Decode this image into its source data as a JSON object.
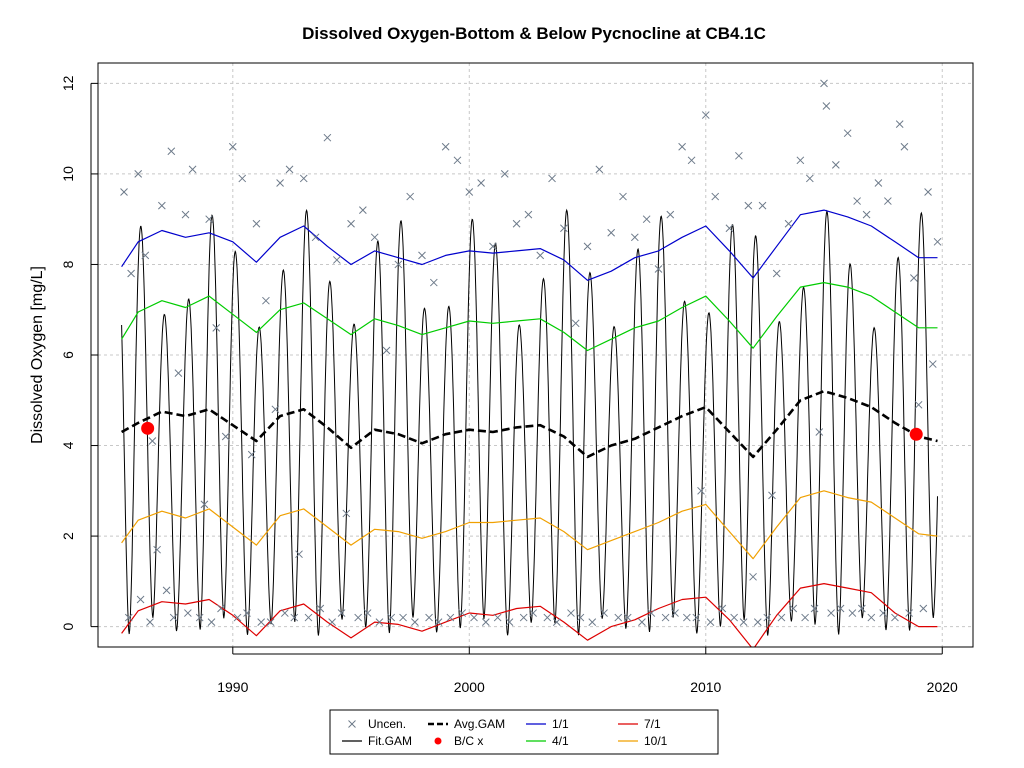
{
  "chart_data": {
    "type": "line",
    "title": "Dissolved Oxygen-Bottom & Below Pycnocline at CB4.1C",
    "xlabel": "",
    "ylabel": "Dissolved Oxygen [mg/L]",
    "xlim": [
      1984.3,
      2021.3
    ],
    "ylim": [
      -0.45,
      12.45
    ],
    "x_ticks": [
      1990,
      2000,
      2010,
      2020
    ],
    "y_ticks": [
      0,
      2,
      4,
      6,
      8,
      10,
      12
    ],
    "grid": true,
    "legend_position": "bottom-center",
    "legend": [
      {
        "label": "Uncen.",
        "kind": "cross",
        "color": "#6d7a8a"
      },
      {
        "label": "Fit.GAM",
        "kind": "line",
        "color": "#000000"
      },
      {
        "label": "Avg.GAM",
        "kind": "dashed",
        "color": "#000000"
      },
      {
        "label": "B/C x",
        "kind": "dot",
        "color": "#ff0000"
      },
      {
        "label": "1/1",
        "kind": "line",
        "color": "#0000cc"
      },
      {
        "label": "4/1",
        "kind": "line",
        "color": "#00cc00"
      },
      {
        "label": "7/1",
        "kind": "line",
        "color": "#dd0000"
      },
      {
        "label": "10/1",
        "kind": "line",
        "color": "#f0a000"
      }
    ],
    "series": [
      {
        "name": "1/1",
        "color": "#0000cc",
        "x": [
          1985.3,
          1986,
          1987,
          1988,
          1989,
          1990,
          1991,
          1992,
          1993,
          1994,
          1995,
          1996,
          1997,
          1998,
          1999,
          2000,
          2001,
          2002,
          2003,
          2004,
          2005,
          2006,
          2007,
          2008,
          2009,
          2010,
          2011,
          2012,
          2013,
          2014,
          2015,
          2016,
          2017,
          2018,
          2019,
          2019.8
        ],
        "y": [
          7.95,
          8.5,
          8.75,
          8.6,
          8.7,
          8.5,
          8.05,
          8.6,
          8.85,
          8.4,
          8.0,
          8.3,
          8.15,
          8.0,
          8.2,
          8.3,
          8.25,
          8.3,
          8.35,
          8.1,
          7.65,
          7.85,
          8.15,
          8.3,
          8.6,
          8.85,
          8.3,
          7.7,
          8.4,
          9.1,
          9.2,
          9.05,
          8.85,
          8.5,
          8.15,
          8.15
        ]
      },
      {
        "name": "4/1",
        "color": "#00cc00",
        "x": [
          1985.3,
          1986,
          1987,
          1988,
          1989,
          1990,
          1991,
          1992,
          1993,
          1994,
          1995,
          1996,
          1997,
          1998,
          1999,
          2000,
          2001,
          2002,
          2003,
          2004,
          2005,
          2006,
          2007,
          2008,
          2009,
          2010,
          2011,
          2012,
          2013,
          2014,
          2015,
          2016,
          2017,
          2018,
          2019,
          2019.8
        ],
        "y": [
          6.35,
          6.95,
          7.2,
          7.05,
          7.3,
          6.9,
          6.5,
          7.0,
          7.15,
          6.8,
          6.45,
          6.8,
          6.65,
          6.45,
          6.6,
          6.75,
          6.7,
          6.75,
          6.8,
          6.5,
          6.1,
          6.35,
          6.6,
          6.75,
          7.05,
          7.3,
          6.75,
          6.15,
          6.85,
          7.5,
          7.6,
          7.5,
          7.3,
          6.95,
          6.6,
          6.6
        ]
      },
      {
        "name": "Avg.GAM",
        "color": "#000000",
        "dashed": true,
        "x": [
          1985.3,
          1986,
          1987,
          1988,
          1989,
          1990,
          1991,
          1992,
          1993,
          1994,
          1995,
          1996,
          1997,
          1998,
          1999,
          2000,
          2001,
          2002,
          2003,
          2004,
          2005,
          2006,
          2007,
          2008,
          2009,
          2010,
          2011,
          2012,
          2013,
          2014,
          2015,
          2016,
          2017,
          2018,
          2019,
          2019.8
        ],
        "y": [
          4.3,
          4.5,
          4.75,
          4.65,
          4.8,
          4.45,
          4.1,
          4.65,
          4.8,
          4.4,
          3.95,
          4.35,
          4.25,
          4.05,
          4.25,
          4.35,
          4.3,
          4.4,
          4.45,
          4.2,
          3.75,
          4.0,
          4.15,
          4.4,
          4.65,
          4.85,
          4.3,
          3.75,
          4.35,
          5.0,
          5.2,
          5.05,
          4.85,
          4.5,
          4.2,
          4.1
        ]
      },
      {
        "name": "10/1",
        "color": "#f0a000",
        "x": [
          1985.3,
          1986,
          1987,
          1988,
          1989,
          1990,
          1991,
          1992,
          1993,
          1994,
          1995,
          1996,
          1997,
          1998,
          1999,
          2000,
          2001,
          2002,
          2003,
          2004,
          2005,
          2006,
          2007,
          2008,
          2009,
          2010,
          2011,
          2012,
          2013,
          2014,
          2015,
          2016,
          2017,
          2018,
          2019,
          2019.8
        ],
        "y": [
          1.85,
          2.35,
          2.55,
          2.4,
          2.6,
          2.2,
          1.8,
          2.45,
          2.6,
          2.2,
          1.8,
          2.15,
          2.1,
          1.95,
          2.1,
          2.3,
          2.3,
          2.35,
          2.4,
          2.1,
          1.7,
          1.9,
          2.1,
          2.3,
          2.55,
          2.7,
          2.1,
          1.5,
          2.2,
          2.85,
          3.0,
          2.85,
          2.75,
          2.4,
          2.05,
          2.0
        ]
      },
      {
        "name": "7/1",
        "color": "#dd0000",
        "x": [
          1985.3,
          1986,
          1987,
          1988,
          1989,
          1990,
          1991,
          1992,
          1993,
          1994,
          1995,
          1996,
          1997,
          1998,
          1999,
          2000,
          2001,
          2002,
          2003,
          2004,
          2005,
          2006,
          2007,
          2008,
          2009,
          2010,
          2011,
          2012,
          2013,
          2014,
          2015,
          2016,
          2017,
          2018,
          2019,
          2019.8
        ],
        "y": [
          -0.15,
          0.35,
          0.55,
          0.5,
          0.6,
          0.25,
          -0.2,
          0.35,
          0.5,
          0.1,
          -0.25,
          0.1,
          0.05,
          -0.1,
          0.1,
          0.3,
          0.25,
          0.4,
          0.45,
          0.1,
          -0.3,
          0.0,
          0.15,
          0.4,
          0.6,
          0.65,
          0.15,
          -0.5,
          0.25,
          0.85,
          0.95,
          0.85,
          0.75,
          0.3,
          0.0,
          0.0
        ]
      }
    ],
    "fit_gam": {
      "name": "Fit.GAM",
      "color": "#000000",
      "x_start": 1985.3,
      "x_end": 2019.8,
      "peak_phase": 0.12,
      "peak_base": 7.9,
      "peak_amp": 1.3,
      "trough_base": 0.0,
      "trough_amp": 0.2
    },
    "bc_points": {
      "name": "B/C x",
      "color": "#ff0000",
      "x": [
        1986.4,
        2018.9
      ],
      "y": [
        4.38,
        4.25
      ]
    },
    "uncen_points": {
      "name": "Uncen.",
      "color": "#6d7a8a",
      "x": [
        1985.4,
        1985.6,
        1985.7,
        1986.0,
        1986.1,
        1986.3,
        1986.5,
        1986.6,
        1986.8,
        1987.0,
        1987.2,
        1987.4,
        1987.5,
        1987.7,
        1988.0,
        1988.1,
        1988.3,
        1988.6,
        1988.8,
        1989.0,
        1989.1,
        1989.3,
        1989.5,
        1989.7,
        1990.0,
        1990.2,
        1990.4,
        1990.6,
        1990.8,
        1991.0,
        1991.2,
        1991.4,
        1991.6,
        1991.8,
        1992.0,
        1992.2,
        1992.4,
        1992.6,
        1992.8,
        1993.0,
        1993.2,
        1993.5,
        1993.7,
        1994.0,
        1994.2,
        1994.4,
        1994.6,
        1994.8,
        1995.0,
        1995.3,
        1995.5,
        1995.7,
        1996.0,
        1996.2,
        1996.5,
        1996.7,
        1997.0,
        1997.2,
        1997.5,
        1997.7,
        1998.0,
        1998.3,
        1998.5,
        1998.7,
        1999.0,
        1999.2,
        1999.5,
        1999.7,
        2000.0,
        2000.2,
        2000.5,
        2000.7,
        2001.0,
        2001.2,
        2001.5,
        2001.7,
        2002.0,
        2002.3,
        2002.5,
        2002.7,
        2003.0,
        2003.3,
        2003.5,
        2003.7,
        2004.0,
        2004.3,
        2004.5,
        2004.7,
        2005.0,
        2005.2,
        2005.5,
        2005.7,
        2006.0,
        2006.3,
        2006.5,
        2006.7,
        2007.0,
        2007.3,
        2007.5,
        2007.7,
        2008.0,
        2008.3,
        2008.5,
        2008.7,
        2009.0,
        2009.2,
        2009.4,
        2009.6,
        2009.8,
        2010.0,
        2010.2,
        2010.4,
        2010.7,
        2011.0,
        2011.2,
        2011.4,
        2011.6,
        2011.8,
        2012.0,
        2012.2,
        2012.4,
        2012.6,
        2012.8,
        2013.0,
        2013.2,
        2013.5,
        2013.7,
        2014.0,
        2014.2,
        2014.4,
        2014.6,
        2014.8,
        2015.0,
        2015.1,
        2015.3,
        2015.5,
        2015.7,
        2016.0,
        2016.2,
        2016.4,
        2016.6,
        2016.8,
        2017.0,
        2017.3,
        2017.5,
        2017.7,
        2018.0,
        2018.2,
        2018.4,
        2018.6,
        2018.8,
        2019.0,
        2019.2,
        2019.4,
        2019.6,
        2019.8
      ],
      "y": [
        9.6,
        0.2,
        7.8,
        10.0,
        0.6,
        8.2,
        0.1,
        4.1,
        1.7,
        9.3,
        0.8,
        10.5,
        0.2,
        5.6,
        9.1,
        0.3,
        10.1,
        0.2,
        2.7,
        9.0,
        0.1,
        6.6,
        0.4,
        4.2,
        10.6,
        0.2,
        9.9,
        0.3,
        3.8,
        8.9,
        0.1,
        7.2,
        0.1,
        4.8,
        9.8,
        0.3,
        10.1,
        0.2,
        1.6,
        9.9,
        0.2,
        8.6,
        0.4,
        10.8,
        0.1,
        8.1,
        0.3,
        2.5,
        8.9,
        0.2,
        9.2,
        0.3,
        8.6,
        0.1,
        6.1,
        0.2,
        8.0,
        0.2,
        9.5,
        0.1,
        8.2,
        0.2,
        7.6,
        0.1,
        10.6,
        0.2,
        10.3,
        0.3,
        9.6,
        0.2,
        9.8,
        0.1,
        8.4,
        0.2,
        10.0,
        0.1,
        8.9,
        0.2,
        9.1,
        0.3,
        8.2,
        0.2,
        9.9,
        0.1,
        8.8,
        0.3,
        6.7,
        0.2,
        8.4,
        0.1,
        10.1,
        0.3,
        8.7,
        0.2,
        9.5,
        0.2,
        8.6,
        0.1,
        9.0,
        0.3,
        7.9,
        0.2,
        9.1,
        0.3,
        10.6,
        0.2,
        10.3,
        0.2,
        3.0,
        11.3,
        0.1,
        9.5,
        0.4,
        8.8,
        0.2,
        10.4,
        0.1,
        9.3,
        1.1,
        0.1,
        9.3,
        0.2,
        2.9,
        7.8,
        0.2,
        8.9,
        0.4,
        10.3,
        0.2,
        9.9,
        0.4,
        4.3,
        12.0,
        11.5,
        0.3,
        10.2,
        0.4,
        10.9,
        0.3,
        9.4,
        0.4,
        9.1,
        0.2,
        9.8,
        0.3,
        9.4,
        0.2,
        11.1,
        10.6,
        0.3,
        7.7,
        4.9,
        0.4,
        9.6,
        5.8,
        8.5
      ]
    }
  }
}
